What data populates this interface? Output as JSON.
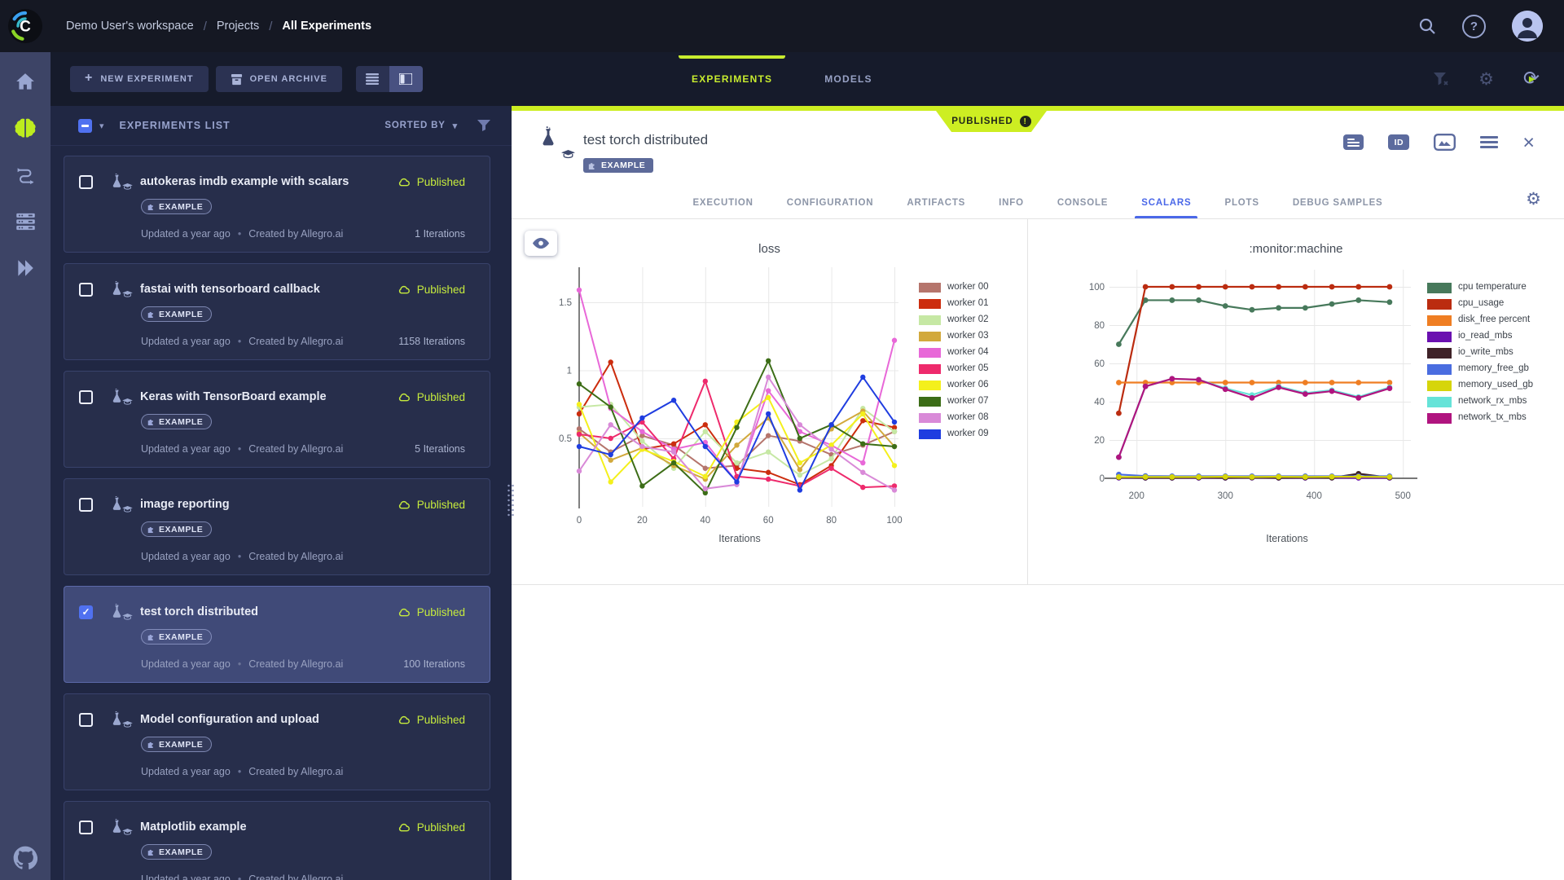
{
  "app": {
    "accent_lime": "#cdee22",
    "active_tab_blue": "#4b68e8",
    "published_text_color": "#c6eb3d"
  },
  "topbar": {
    "breadcrumb": [
      "Demo User's workspace",
      "Projects",
      "All Experiments"
    ]
  },
  "toolbar": {
    "new_experiment_label": "NEW EXPERIMENT",
    "open_archive_label": "OPEN ARCHIVE",
    "tabs": [
      {
        "label": "EXPERIMENTS",
        "active": true
      },
      {
        "label": "MODELS",
        "active": false
      }
    ]
  },
  "list": {
    "title": "EXPERIMENTS LIST",
    "sorted_by_label": "SORTED BY",
    "meta_separator": "•",
    "items": [
      {
        "title": "autokeras imdb example with scalars",
        "status": "Published",
        "tag": "EXAMPLE",
        "updated": "Updated a year ago",
        "created": "Created by Allegro.ai",
        "iterations": "1 Iterations",
        "selected": false
      },
      {
        "title": "fastai with tensorboard callback",
        "status": "Published",
        "tag": "EXAMPLE",
        "updated": "Updated a year ago",
        "created": "Created by Allegro.ai",
        "iterations": "1158 Iterations",
        "selected": false
      },
      {
        "title": "Keras with TensorBoard example",
        "status": "Published",
        "tag": "EXAMPLE",
        "updated": "Updated a year ago",
        "created": "Created by Allegro.ai",
        "iterations": "5 Iterations",
        "selected": false
      },
      {
        "title": "image reporting",
        "status": "Published",
        "tag": "EXAMPLE",
        "updated": "Updated a year ago",
        "created": "Created by Allegro.ai",
        "iterations": "",
        "selected": false
      },
      {
        "title": "test torch distributed",
        "status": "Published",
        "tag": "EXAMPLE",
        "updated": "Updated a year ago",
        "created": "Created by Allegro.ai",
        "iterations": "100 Iterations",
        "selected": true
      },
      {
        "title": "Model configuration and upload",
        "status": "Published",
        "tag": "EXAMPLE",
        "updated": "Updated a year ago",
        "created": "Created by Allegro.ai",
        "iterations": "",
        "selected": false
      },
      {
        "title": "Matplotlib example",
        "status": "Published",
        "tag": "EXAMPLE",
        "updated": "Updated a year ago",
        "created": "Created by Allegro.ai",
        "iterations": "",
        "selected": false
      }
    ]
  },
  "detail": {
    "published_badge": "PUBLISHED",
    "title": "test torch distributed",
    "tag": "EXAMPLE",
    "id_icon_label": "ID",
    "tabs": [
      "EXECUTION",
      "CONFIGURATION",
      "ARTIFACTS",
      "INFO",
      "CONSOLE",
      "SCALARS",
      "PLOTS",
      "DEBUG SAMPLES"
    ],
    "active_tab": "SCALARS"
  },
  "chart_data": [
    {
      "type": "line",
      "title": "loss",
      "xlabel": "Iterations",
      "x": [
        0,
        10,
        20,
        30,
        40,
        50,
        60,
        70,
        80,
        90,
        100
      ],
      "x_ticks": [
        0,
        20,
        40,
        60,
        80,
        100
      ],
      "y_ticks": [
        0.5,
        1,
        1.5
      ],
      "ylim": [
        0,
        1.7
      ],
      "legend_position": "right",
      "grid": true,
      "series": [
        {
          "name": "worker 00",
          "color": "#b5756c",
          "values": [
            0.57,
            0.4,
            0.52,
            0.45,
            0.28,
            0.3,
            0.52,
            0.48,
            0.38,
            0.45,
            0.55
          ]
        },
        {
          "name": "worker 01",
          "color": "#cc2d0e",
          "values": [
            0.68,
            1.06,
            0.42,
            0.46,
            0.6,
            0.28,
            0.25,
            0.16,
            0.3,
            0.63,
            0.58
          ]
        },
        {
          "name": "worker 02",
          "color": "#c6e8a4",
          "values": [
            0.73,
            0.75,
            0.48,
            0.28,
            0.55,
            0.32,
            0.4,
            0.23,
            0.35,
            0.72,
            0.55
          ]
        },
        {
          "name": "worker 03",
          "color": "#d2a93c",
          "values": [
            0.54,
            0.34,
            0.43,
            0.3,
            0.2,
            0.45,
            0.65,
            0.27,
            0.57,
            0.7,
            0.44
          ]
        },
        {
          "name": "worker 04",
          "color": "#e868d8",
          "values": [
            1.59,
            0.72,
            0.55,
            0.42,
            0.47,
            0.18,
            0.85,
            0.55,
            0.45,
            0.32,
            1.22
          ]
        },
        {
          "name": "worker 05",
          "color": "#ee2a6c",
          "values": [
            0.53,
            0.5,
            0.62,
            0.35,
            0.92,
            0.22,
            0.2,
            0.15,
            0.28,
            0.14,
            0.15
          ]
        },
        {
          "name": "worker 06",
          "color": "#f4f01c",
          "values": [
            0.75,
            0.18,
            0.42,
            0.33,
            0.22,
            0.62,
            0.8,
            0.32,
            0.45,
            0.68,
            0.3
          ]
        },
        {
          "name": "worker 07",
          "color": "#3c6d17",
          "values": [
            0.9,
            0.73,
            0.15,
            0.32,
            0.1,
            0.58,
            1.07,
            0.5,
            0.6,
            0.46,
            0.44
          ]
        },
        {
          "name": "worker 08",
          "color": "#d98ad8",
          "values": [
            0.26,
            0.6,
            0.44,
            0.4,
            0.13,
            0.16,
            0.95,
            0.6,
            0.42,
            0.25,
            0.12
          ]
        },
        {
          "name": "worker 09",
          "color": "#1f3de0",
          "values": [
            0.44,
            0.38,
            0.65,
            0.78,
            0.44,
            0.18,
            0.68,
            0.12,
            0.6,
            0.95,
            0.62
          ]
        }
      ]
    },
    {
      "type": "line",
      "title": ":monitor:machine",
      "xlabel": "Iterations",
      "x": [
        180,
        210,
        240,
        270,
        300,
        330,
        360,
        390,
        420,
        450,
        485
      ],
      "x_ticks": [
        200,
        300,
        400,
        500
      ],
      "y_ticks": [
        0,
        20,
        40,
        60,
        80,
        100
      ],
      "ylim": [
        -3,
        105
      ],
      "legend_position": "right",
      "grid": true,
      "series": [
        {
          "name": "cpu temperature",
          "color": "#47795b",
          "values": [
            70,
            93,
            93,
            93,
            90,
            88,
            89,
            89,
            91,
            93,
            92
          ]
        },
        {
          "name": "cpu_usage",
          "color": "#bb2c10",
          "values": [
            34,
            100,
            100,
            100,
            100,
            100,
            100,
            100,
            100,
            100,
            100
          ]
        },
        {
          "name": "disk_free percent",
          "color": "#ef7e23",
          "values": [
            50,
            50,
            50,
            50,
            50,
            50,
            50,
            50,
            50,
            50,
            50
          ]
        },
        {
          "name": "io_read_mbs",
          "color": "#6a10b0",
          "values": [
            0.3,
            0.2,
            0.2,
            0.2,
            0.2,
            0.3,
            0.2,
            0.2,
            0.3,
            0.2,
            0.2
          ]
        },
        {
          "name": "io_write_mbs",
          "color": "#3f2228",
          "values": [
            0.5,
            0.3,
            0.3,
            0.4,
            0.3,
            0.4,
            0.3,
            0.4,
            0.3,
            2.4,
            0.4
          ]
        },
        {
          "name": "memory_free_gb",
          "color": "#4a6de0",
          "values": [
            2.0,
            1.2,
            1.1,
            1.1,
            1.1,
            1.1,
            1.1,
            1.1,
            1.1,
            1.1,
            1.1
          ]
        },
        {
          "name": "memory_used_gb",
          "color": "#d6d50a",
          "values": [
            0.7,
            0.7,
            0.7,
            0.7,
            0.8,
            0.7,
            0.8,
            0.7,
            0.8,
            0.8,
            0.7
          ]
        },
        {
          "name": "network_rx_mbs",
          "color": "#66e3d8",
          "values": [
            11,
            48,
            52,
            51.5,
            47,
            43.5,
            48,
            44.5,
            46,
            42.5,
            47.5
          ]
        },
        {
          "name": "network_tx_mbs",
          "color": "#b0147f",
          "values": [
            11,
            48,
            52,
            51.5,
            46.5,
            42,
            47.5,
            44,
            45.5,
            42,
            47
          ]
        }
      ]
    }
  ]
}
